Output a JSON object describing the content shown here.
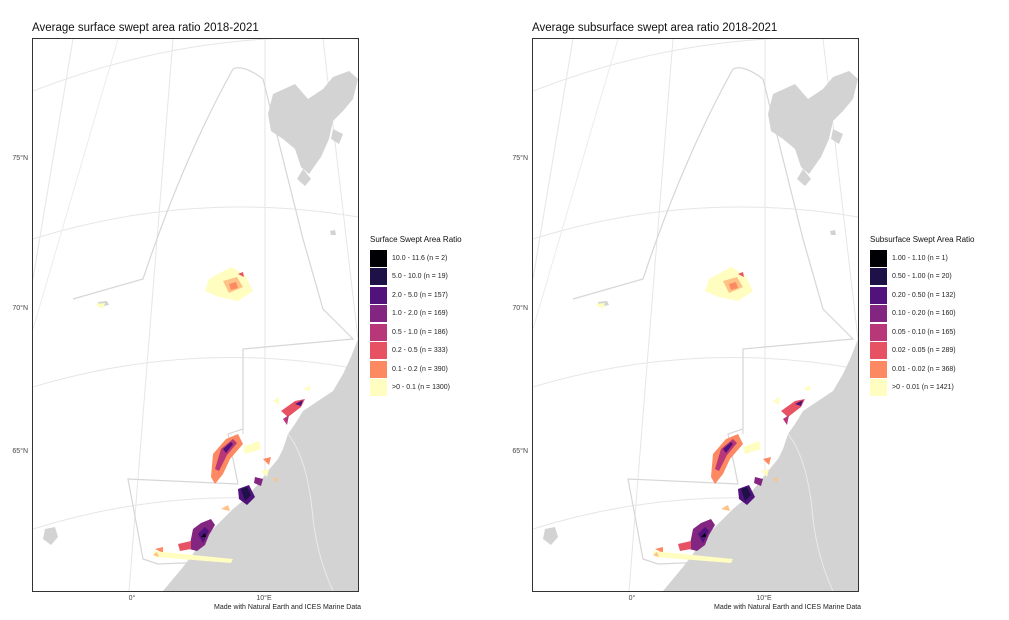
{
  "maps": [
    {
      "title": "Average surface swept area ratio 2018-2021",
      "legend": {
        "title": "Surface Swept Area Ratio",
        "items": [
          {
            "label": "10.0 - 11.6 (n = 2)",
            "color": "#000004"
          },
          {
            "label": "5.0 - 10.0 (n = 19)",
            "color": "#1d1147"
          },
          {
            "label": "2.0 - 5.0 (n = 157)",
            "color": "#51127c"
          },
          {
            "label": "1.0 - 2.0 (n = 169)",
            "color": "#832681"
          },
          {
            "label": "0.5 - 1.0 (n = 186)",
            "color": "#b73779"
          },
          {
            "label": "0.2 - 0.5 (n = 333)",
            "color": "#e75263"
          },
          {
            "label": "0.1 - 0.2 (n = 390)",
            "color": "#fc8961"
          },
          {
            "label": ">0 - 0.1 (n = 1300)",
            "color": "#fec287"
          }
        ]
      },
      "lat_labels": [
        "75°N",
        "70°N",
        "65°N"
      ],
      "lon_labels": [
        "0°",
        "10°E"
      ],
      "credit": "Made with Natural Earth and ICES Marine Data"
    },
    {
      "title": "Average subsurface swept area ratio 2018-2021",
      "legend": {
        "title": "Subsurface Swept Area Ratio",
        "items": [
          {
            "label": "1.00 - 1.10 (n = 1)",
            "color": "#000004"
          },
          {
            "label": "0.50 - 1.00 (n = 20)",
            "color": "#1d1147"
          },
          {
            "label": "0.20 - 0.50 (n = 132)",
            "color": "#51127c"
          },
          {
            "label": "0.10 - 0.20 (n = 160)",
            "color": "#832681"
          },
          {
            "label": "0.05 - 0.10 (n = 165)",
            "color": "#b73779"
          },
          {
            "label": "0.02 - 0.05 (n = 289)",
            "color": "#e75263"
          },
          {
            "label": "0.01 - 0.02 (n = 368)",
            "color": "#fc8961"
          },
          {
            "label": ">0 - 0.01 (n = 1421)",
            "color": "#fec287"
          }
        ]
      },
      "lat_labels": [
        "75°N",
        "70°N",
        "65°N"
      ],
      "lon_labels": [
        "0°",
        "10°E"
      ],
      "credit": "Made with Natural Earth and ICES Marine Data"
    }
  ],
  "colors": {
    "land": "#d3d3d3",
    "grid": "#e6e6e6",
    "boundary": "#d9d9d9",
    "lowest_class": "#fffdbf"
  }
}
